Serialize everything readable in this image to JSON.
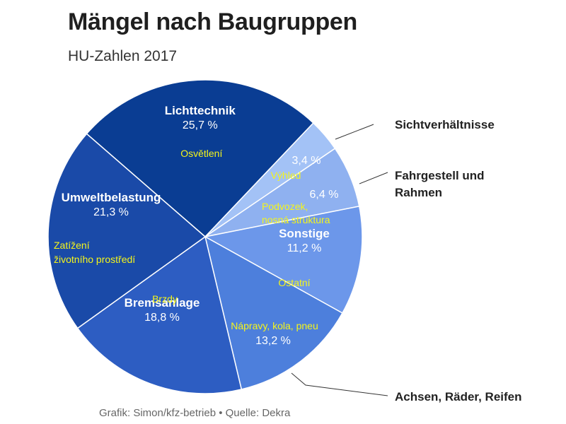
{
  "header": {
    "title": "Mängel nach Baugruppen",
    "subtitle": "HU-Zahlen 2017"
  },
  "footer": {
    "credit": "Grafik: Simon/kfz-betrieb • Quelle: Dekra"
  },
  "chart_data": {
    "type": "pie",
    "title": "Mängel nach Baugruppen",
    "subtitle": "HU-Zahlen 2017",
    "slices": [
      {
        "name": "Lichttechnik",
        "value": 25.7,
        "label": "25,7 %",
        "translation": [
          "Osvětlení"
        ],
        "color": "#0a3d93"
      },
      {
        "name": "Sichtverhältnisse",
        "value": 3.4,
        "label": "3,4 %",
        "translation": [
          "Výhled"
        ],
        "color": "#a3c2f6"
      },
      {
        "name": "Fahrgestell und Rahmen",
        "value": 6.4,
        "label": "6,4 %",
        "translation": [
          "Podvozek,",
          "nosná struktura"
        ],
        "color": "#8fb1f0"
      },
      {
        "name": "Sonstige",
        "value": 11.2,
        "label": "11,2 %",
        "translation": [
          "Ostatní"
        ],
        "color": "#6c97ea"
      },
      {
        "name": "Achsen, Räder, Reifen",
        "value": 13.2,
        "label": "13,2 %",
        "translation": [
          "Nápravy, kola, pneu"
        ],
        "color": "#4d7fdc"
      },
      {
        "name": "Bremsanlage",
        "value": 18.8,
        "label": "18,8 %",
        "translation": [
          "Brzdy"
        ],
        "color": "#2d5dc2"
      },
      {
        "name": "Umweltbelastung",
        "value": 21.3,
        "label": "21,3 %",
        "translation": [
          "Zatížení",
          "životního prostředí"
        ],
        "color": "#1a4aa8"
      }
    ]
  }
}
